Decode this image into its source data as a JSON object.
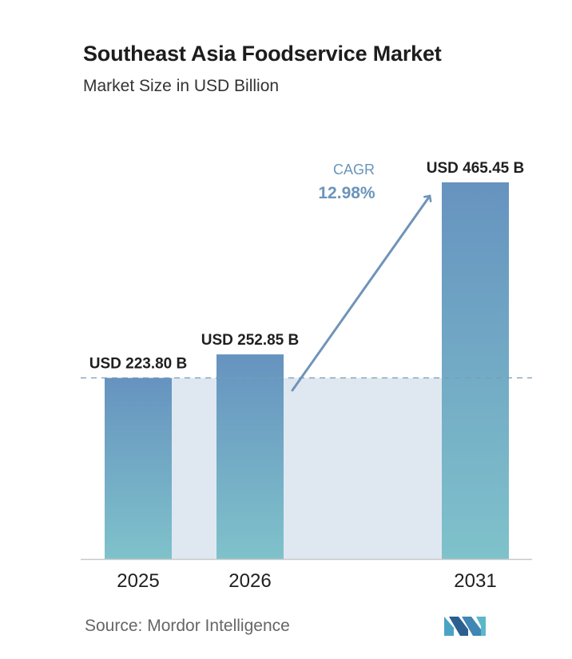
{
  "chart_data": {
    "type": "bar",
    "title": "Southeast Asia Foodservice Market",
    "subtitle": "Market Size in USD Billion",
    "categories": [
      "2025",
      "2026",
      "2031"
    ],
    "values": [
      223.8,
      252.85,
      465.45
    ],
    "data_labels": [
      "USD 223.80 B",
      "USD 252.85 B",
      "USD 465.45 B"
    ],
    "ylim": [
      0,
      465.45
    ],
    "grid": false,
    "legend": "none",
    "annotation": {
      "label": "CAGR",
      "value": "12.98%"
    },
    "colors": {
      "bar_top": "#6693bf",
      "bar_bottom": "#7fc2cb",
      "band": "#dfe8f1",
      "reference_line": "#7a9ab8",
      "arrow": "#6f94b8",
      "cagr_text": "#6a95ba"
    }
  },
  "source": {
    "text": "Source:  Mordor Intelligence",
    "logo_icon": "mordor-intelligence-logo-icon"
  }
}
